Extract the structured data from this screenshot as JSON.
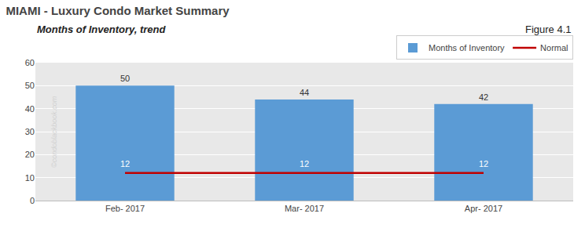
{
  "chart_data": {
    "type": "bar",
    "title": "MIAMI - Luxury Condo Market Summary",
    "subtitle": "Months of Inventory, trend",
    "annotations": [
      "Figure 4.1",
      "©condoblackbook.com"
    ],
    "categories": [
      "Feb- 2017",
      "Mar- 2017",
      "Apr- 2017"
    ],
    "series": [
      {
        "name": "Months of Inventory",
        "type": "bar",
        "color": "#5B9BD5",
        "values": [
          50,
          44,
          42
        ]
      },
      {
        "name": "Normal",
        "type": "line",
        "color": "#C00000",
        "values": [
          12,
          12,
          12
        ]
      }
    ],
    "ylim": [
      0,
      60
    ],
    "yticks": [
      0,
      10,
      20,
      30,
      40,
      50,
      60
    ],
    "grid": true,
    "legend": "upper right",
    "data_labels": true
  }
}
